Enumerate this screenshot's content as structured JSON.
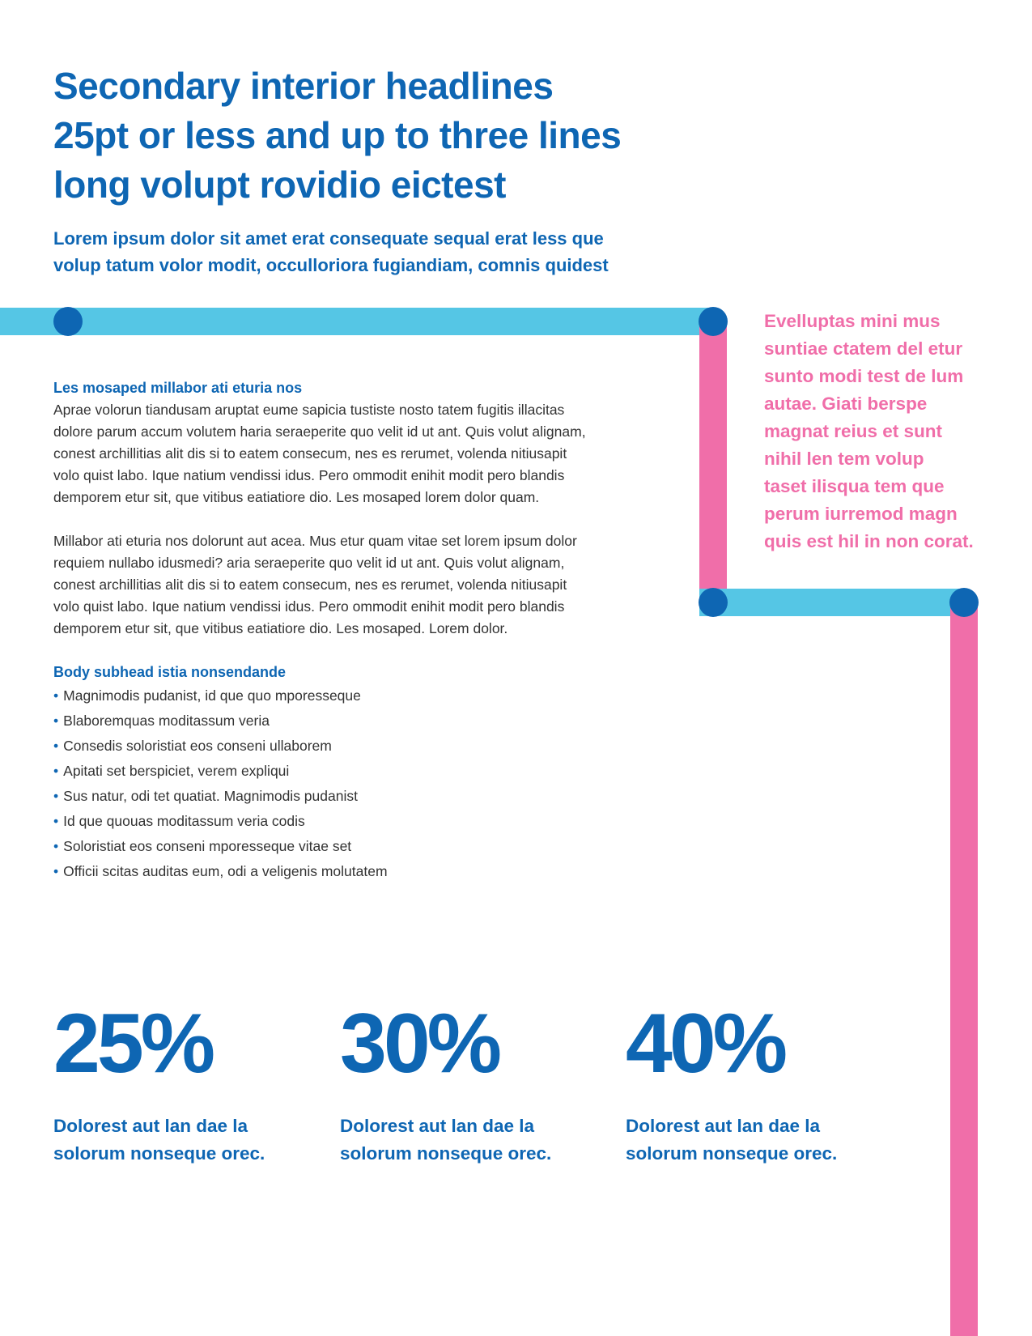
{
  "headline": {
    "lines": [
      "Secondary interior headlines",
      "25pt or less and up to three lines",
      "long volupt rovidio eictest"
    ]
  },
  "deck": {
    "lines": [
      "Lorem ipsum dolor sit amet erat consequate sequal erat less que",
      "volup tatum volor modit, occulloriora fugiandiam, comnis quidest"
    ]
  },
  "pullquote": {
    "lines": [
      "Evelluptas mini mus",
      "suntiae ctatem del etur",
      "sunto modi test de lum",
      "autae. Giati berspe",
      "magnat reius et sunt",
      "nihil len tem volup",
      "taset ilisqua tem que",
      "perum iurremod magn",
      "quis est hil in non corat."
    ]
  },
  "section1": {
    "subhead": "Les mosaped millabor ati eturia nos",
    "para1": [
      "Aprae volorun tiandusam aruptat eume sapicia tustiste nosto tatem fugitis illacitas",
      "dolore parum accum volutem haria seraeperite quo velit id ut ant. Quis volut alignam,",
      "conest archillitias alit dis si to eatem consecum, nes es rerumet, volenda nitiusapit",
      "volo quist labo. Ique natium vendissi idus. Pero ommodit enihit modit pero blandis",
      "demporem etur sit, que vitibus eatiatiore dio. Les mosaped lorem dolor quam."
    ],
    "para2": [
      "Millabor ati eturia nos dolorunt aut acea. Mus etur quam vitae set lorem ipsum dolor",
      "requiem nullabo idusmedi? aria seraeperite quo velit id ut ant. Quis volut alignam,",
      "conest archillitias alit dis si to eatem consecum, nes es rerumet, volenda nitiusapit",
      "volo quist labo. Ique natium vendissi idus. Pero ommodit enihit modit pero blandis",
      "demporem etur sit, que vitibus eatiatiore dio. Les mosaped. Lorem dolor."
    ]
  },
  "section2": {
    "subhead": "Body subhead istia nonsendande",
    "bullet_glyph": "•",
    "bullets": [
      "Magnimodis pudanist, id que quo mporesseque",
      "Blaboremquas moditassum veria",
      "Consedis soloristiat eos conseni ullaborem",
      "Apitati set berspiciet, verem expliqui",
      "Sus natur, odi tet quatiat. Magnimodis pudanist",
      "Id que quouas moditassum veria codis",
      "Soloristiat eos conseni mporesseque vitae set",
      "Officii scitas auditas eum, odi a veligenis molutatem"
    ]
  },
  "stats": [
    {
      "value": "25%",
      "caption": [
        "Dolorest aut lan dae la",
        "solorum nonseque orec."
      ]
    },
    {
      "value": "30%",
      "caption": [
        "Dolorest aut lan dae la",
        "solorum nonseque orec."
      ]
    },
    {
      "value": "40%",
      "caption": [
        "Dolorest aut lan dae la",
        "solorum nonseque orec."
      ]
    }
  ],
  "colors": {
    "brand_blue": "#0E66B3",
    "accent_cyan": "#55C6E5",
    "accent_pink": "#F06EA9",
    "body_text": "#333333"
  }
}
